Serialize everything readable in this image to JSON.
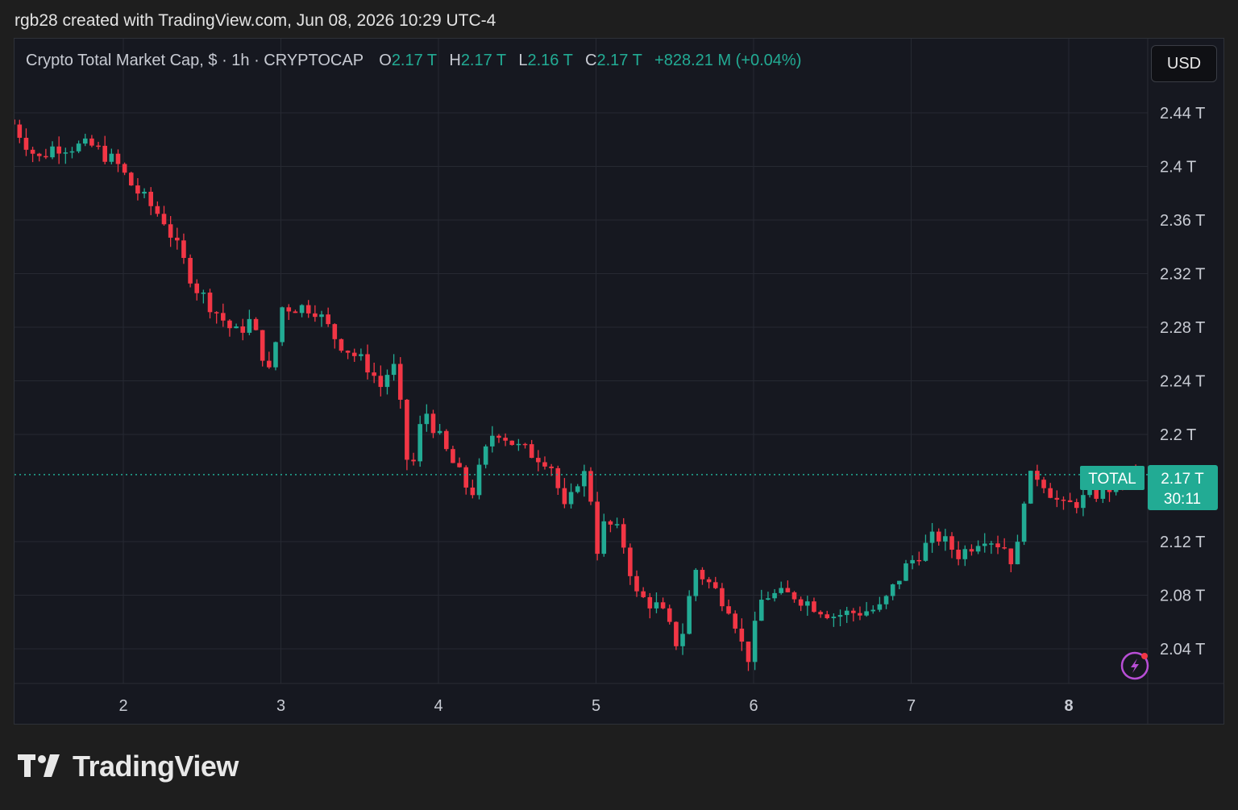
{
  "header": {
    "attribution": "rgb28 created with TradingView.com, Jun 08, 2026 10:29 UTC-4"
  },
  "legend": {
    "symbol": "Crypto Total Market Cap, $ · 1h · CRYPTOCAP",
    "o_label": "O",
    "o_value": "2.17 T",
    "h_label": "H",
    "h_value": "2.17 T",
    "l_label": "L",
    "l_value": "2.16 T",
    "c_label": "C",
    "c_value": "2.17 T",
    "change": "+828.21 M (+0.04%)"
  },
  "currency_button": "USD",
  "price_tag": {
    "symbol": "TOTAL",
    "price": "2.17 T",
    "countdown": "30:11"
  },
  "footer": {
    "brand": "TradingView"
  },
  "colors": {
    "up": "#22ab94",
    "down": "#f23645",
    "background": "#161820",
    "grid": "#262932"
  },
  "chart_data": {
    "type": "candlestick",
    "title": "Crypto Total Market Cap, $ · 1h · CRYPTOCAP",
    "xlabel": "",
    "ylabel": "",
    "y_unit": "T",
    "ylim": [
      2.0,
      2.46
    ],
    "xlim": [
      1.3,
      8.48
    ],
    "y_ticks": [
      "2.44 T",
      "2.4 T",
      "2.36 T",
      "2.32 T",
      "2.28 T",
      "2.24 T",
      "2.2 T",
      "2.12 T",
      "2.08 T",
      "2.04 T"
    ],
    "y_tick_values": [
      2.44,
      2.4,
      2.36,
      2.32,
      2.28,
      2.24,
      2.2,
      2.12,
      2.08,
      2.04
    ],
    "x_ticks": [
      "2",
      "3",
      "4",
      "5",
      "6",
      "7",
      "8"
    ],
    "x_tick_values": [
      2,
      3,
      4,
      5,
      6,
      7,
      8
    ],
    "current_price": 2.17,
    "grid": true,
    "anchors_t": [
      1.32,
      1.5,
      1.6,
      1.85,
      2.0,
      2.1,
      2.3,
      2.42,
      2.5,
      2.75,
      2.85,
      2.97,
      3.05,
      3.25,
      3.4,
      3.6,
      3.68,
      3.75,
      3.8,
      3.86,
      3.95,
      4.1,
      4.25,
      4.35,
      4.4,
      4.55,
      4.75,
      4.85,
      4.95,
      5.0,
      5.05,
      5.1,
      5.2,
      5.3,
      5.45,
      5.57,
      5.67,
      5.75,
      5.9,
      6.0,
      6.1,
      6.3,
      6.55,
      6.85,
      7.0,
      7.2,
      7.35,
      7.5,
      7.65,
      7.7,
      7.77,
      7.85,
      8.0,
      8.1,
      8.3,
      8.4
    ],
    "anchors_price": [
      2.435,
      2.405,
      2.415,
      2.415,
      2.402,
      2.385,
      2.36,
      2.33,
      2.31,
      2.275,
      2.285,
      2.245,
      2.295,
      2.295,
      2.27,
      2.25,
      2.235,
      2.255,
      2.22,
      2.165,
      2.22,
      2.185,
      2.155,
      2.19,
      2.205,
      2.19,
      2.18,
      2.14,
      2.175,
      2.16,
      2.115,
      2.135,
      2.125,
      2.08,
      2.07,
      2.04,
      2.1,
      2.09,
      2.07,
      2.03,
      2.08,
      2.08,
      2.065,
      2.07,
      2.1,
      2.125,
      2.11,
      2.125,
      2.115,
      2.1,
      2.165,
      2.17,
      2.145,
      2.15,
      2.16,
      2.17
    ]
  }
}
